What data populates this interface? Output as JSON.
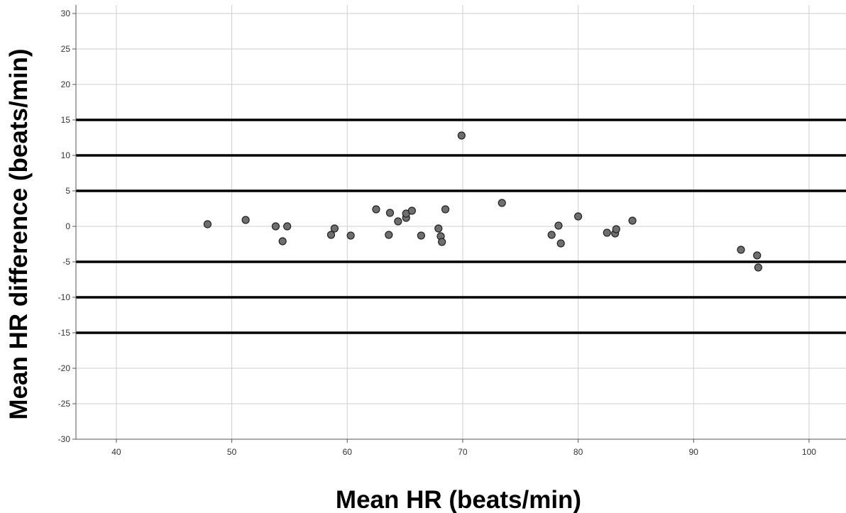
{
  "chart_data": {
    "type": "scatter",
    "title": "",
    "xlabel": "Mean HR (beats/min)",
    "ylabel": "Mean HR difference (beats/min)",
    "xlim": [
      36.5,
      103.2
    ],
    "ylim": [
      -30,
      31.2
    ],
    "x_ticks": [
      40,
      50,
      60,
      70,
      80,
      90,
      100
    ],
    "y_ticks": [
      30,
      25,
      20,
      15,
      10,
      5,
      0,
      -5,
      -10,
      -15,
      -20,
      -25,
      -30
    ],
    "x_tick_labels": [
      "40",
      "50",
      "60",
      "70",
      "80",
      "90",
      "100"
    ],
    "y_tick_labels": [
      "30",
      "25",
      "20",
      "15",
      "10",
      "5",
      "0",
      "-5",
      "-10",
      "-15",
      "-20",
      "-25",
      "-30"
    ],
    "grid": true,
    "reference_lines_y": [
      15,
      10,
      5,
      -5,
      -10,
      -15
    ],
    "colors": {
      "point_fill": "#6e6e6e",
      "point_stroke": "#222222",
      "grid": "#cfcfcf",
      "reference_line": "#000000"
    },
    "points": [
      {
        "x": 47.9,
        "y": 0.3
      },
      {
        "x": 51.2,
        "y": 0.9
      },
      {
        "x": 53.8,
        "y": 0.0
      },
      {
        "x": 54.4,
        "y": -2.1
      },
      {
        "x": 54.8,
        "y": 0.0
      },
      {
        "x": 58.6,
        "y": -1.2
      },
      {
        "x": 58.9,
        "y": -0.3
      },
      {
        "x": 60.3,
        "y": -1.3
      },
      {
        "x": 62.5,
        "y": 2.4
      },
      {
        "x": 63.6,
        "y": -1.2
      },
      {
        "x": 63.7,
        "y": 1.9
      },
      {
        "x": 64.4,
        "y": 0.7
      },
      {
        "x": 65.1,
        "y": 1.2
      },
      {
        "x": 65.1,
        "y": 1.8
      },
      {
        "x": 65.6,
        "y": 2.2
      },
      {
        "x": 66.4,
        "y": -1.3
      },
      {
        "x": 67.9,
        "y": -0.3
      },
      {
        "x": 68.1,
        "y": -1.4
      },
      {
        "x": 68.2,
        "y": -2.2
      },
      {
        "x": 68.5,
        "y": 2.4
      },
      {
        "x": 69.9,
        "y": 12.8
      },
      {
        "x": 73.4,
        "y": 3.3
      },
      {
        "x": 77.7,
        "y": -1.2
      },
      {
        "x": 78.3,
        "y": 0.1
      },
      {
        "x": 78.5,
        "y": -2.4
      },
      {
        "x": 80.0,
        "y": 1.4
      },
      {
        "x": 82.5,
        "y": -0.9
      },
      {
        "x": 83.2,
        "y": -1.0
      },
      {
        "x": 83.3,
        "y": -0.4
      },
      {
        "x": 84.7,
        "y": 0.8
      },
      {
        "x": 94.1,
        "y": -3.3
      },
      {
        "x": 95.5,
        "y": -4.1
      },
      {
        "x": 95.6,
        "y": -5.8
      }
    ]
  }
}
